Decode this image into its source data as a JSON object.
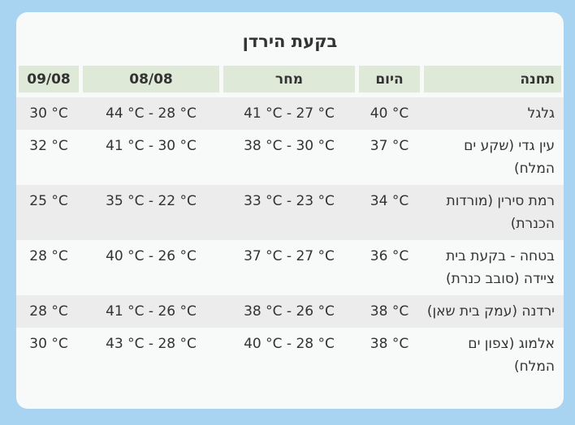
{
  "theme": {
    "page_bg": "#a8d3f1",
    "card_bg": "#f8faf9",
    "header_cell_bg": "#dee9d8",
    "row_alt_bg": "#ececec",
    "text": "#333333"
  },
  "title": "בקעת הירדן",
  "table": {
    "columns": [
      {
        "key": "station",
        "label": "תחנה"
      },
      {
        "key": "today",
        "label": "היום"
      },
      {
        "key": "tomorrow",
        "label": "מחר"
      },
      {
        "key": "day_0808",
        "label": "08/08"
      },
      {
        "key": "day_0908",
        "label": "09/08"
      }
    ],
    "rows": [
      {
        "station": "גלגל",
        "today": "40 °C",
        "tomorrow": "41 °C - 27 °C",
        "day_0808": "44 °C - 28 °C",
        "day_0908": "30 °C"
      },
      {
        "station": "עין גדי (שקע ים המלח)",
        "today": "37 °C",
        "tomorrow": "38 °C - 30 °C",
        "day_0808": "41 °C - 30 °C",
        "day_0908": "32 °C"
      },
      {
        "station": "רמת סירין (מורדות הכנרת)",
        "today": "34 °C",
        "tomorrow": "33 °C - 23 °C",
        "day_0808": "35 °C - 22 °C",
        "day_0908": "25 °C"
      },
      {
        "station": "בטחה - בקעת בית ציידה (סובב כנרת)",
        "today": "36 °C",
        "tomorrow": "37 °C - 27 °C",
        "day_0808": "40 °C - 26 °C",
        "day_0908": "28 °C"
      },
      {
        "station": "ירדנה (עמק בית שאן)",
        "today": "38 °C",
        "tomorrow": "38 °C - 26 °C",
        "day_0808": "41 °C - 26 °C",
        "day_0908": "28 °C"
      },
      {
        "station": "אלמוג (צפון ים המלח)",
        "today": "38 °C",
        "tomorrow": "40 °C - 28 °C",
        "day_0808": "43 °C - 28 °C",
        "day_0908": "30 °C"
      }
    ]
  }
}
